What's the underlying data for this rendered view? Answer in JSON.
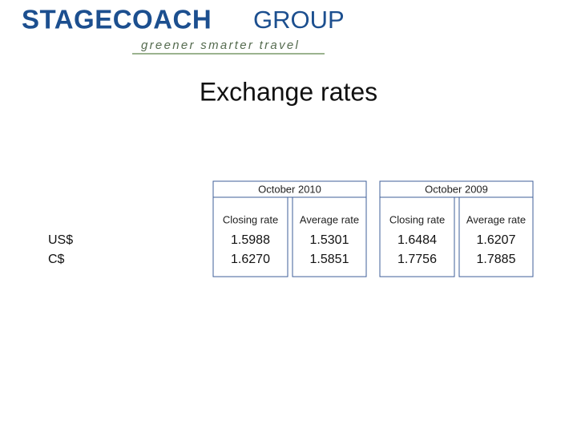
{
  "header": {
    "logo_main": "STAGECOACH",
    "logo_sub": "GROUP",
    "tagline": "greener smarter travel"
  },
  "title": "Exchange rates",
  "table": {
    "groups": [
      "October 2010",
      "October 2009"
    ],
    "columns": [
      "Closing rate",
      "Average rate",
      "Closing rate",
      "Average rate"
    ],
    "rows": [
      {
        "label": "US$",
        "values": [
          "1.5988",
          "1.5301",
          "1.6484",
          "1.6207"
        ]
      },
      {
        "label": "C$",
        "values": [
          "1.6270",
          "1.5851",
          "1.7756",
          "1.7885"
        ]
      }
    ]
  }
}
